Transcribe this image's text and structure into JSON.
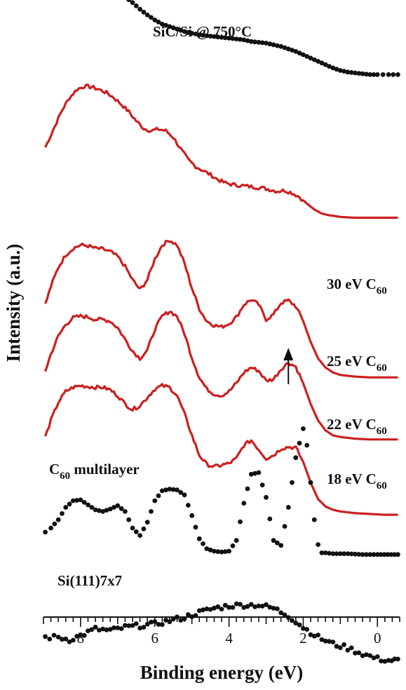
{
  "chart_data": {
    "type": "line",
    "xlabel": "Binding energy (eV)",
    "ylabel": "Intensity (a.u.)",
    "xlim": [
      9.0,
      -0.6
    ],
    "x_axis_reversed": true,
    "x_ticks": [
      8,
      6,
      4,
      2,
      0
    ],
    "x_minor_tick_step": 0.2,
    "grid": false,
    "legend": "none",
    "colors": {
      "red": "#cc1f1f",
      "black": "#111111"
    },
    "series": [
      {
        "label": "SiC/Si @ 750°C",
        "style": "dots",
        "color": "#111111",
        "offset": 6.0,
        "points": [
          [
            8.95,
            0.92
          ],
          [
            8.8,
            0.95
          ],
          [
            8.6,
            0.98
          ],
          [
            8.4,
            1.0
          ],
          [
            8.2,
            1.03
          ],
          [
            8.0,
            1.04
          ],
          [
            7.8,
            1.05
          ],
          [
            7.6,
            1.05
          ],
          [
            7.4,
            1.04
          ],
          [
            7.2,
            1.02
          ],
          [
            7.0,
            0.98
          ],
          [
            6.8,
            0.92
          ],
          [
            6.6,
            0.85
          ],
          [
            6.4,
            0.77
          ],
          [
            6.2,
            0.7
          ],
          [
            6.0,
            0.64
          ],
          [
            5.8,
            0.59
          ],
          [
            5.6,
            0.56
          ],
          [
            5.4,
            0.53
          ],
          [
            5.2,
            0.5
          ],
          [
            5.0,
            0.48
          ],
          [
            4.8,
            0.46
          ],
          [
            4.6,
            0.45
          ],
          [
            4.4,
            0.44
          ],
          [
            4.2,
            0.43
          ],
          [
            4.0,
            0.42
          ],
          [
            3.8,
            0.41
          ],
          [
            3.6,
            0.4
          ],
          [
            3.4,
            0.38
          ],
          [
            3.2,
            0.37
          ],
          [
            3.0,
            0.36
          ],
          [
            2.8,
            0.34
          ],
          [
            2.6,
            0.32
          ],
          [
            2.4,
            0.29
          ],
          [
            2.2,
            0.26
          ],
          [
            2.0,
            0.22
          ],
          [
            1.8,
            0.18
          ],
          [
            1.6,
            0.14
          ],
          [
            1.4,
            0.1
          ],
          [
            1.2,
            0.06
          ],
          [
            1.0,
            0.03
          ],
          [
            0.8,
            0.01
          ],
          [
            0.6,
            0.0
          ],
          [
            0.4,
            -0.01
          ],
          [
            0.2,
            -0.02
          ],
          [
            0.0,
            -0.02
          ],
          [
            -0.3,
            -0.02
          ],
          [
            -0.55,
            -0.02
          ]
        ]
      },
      {
        "label": "30 eV C₆₀",
        "label_main": "30 eV C",
        "label_sub": "60",
        "style": "line",
        "color": "#cc1f1f",
        "offset": 4.5,
        "points": [
          [
            8.95,
            0.6
          ],
          [
            8.7,
            0.85
          ],
          [
            8.5,
            1.05
          ],
          [
            8.3,
            1.2
          ],
          [
            8.1,
            1.3
          ],
          [
            7.9,
            1.34
          ],
          [
            7.7,
            1.33
          ],
          [
            7.5,
            1.3
          ],
          [
            7.3,
            1.26
          ],
          [
            7.1,
            1.2
          ],
          [
            6.9,
            1.12
          ],
          [
            6.7,
            1.03
          ],
          [
            6.5,
            0.92
          ],
          [
            6.3,
            0.83
          ],
          [
            6.1,
            0.8
          ],
          [
            5.9,
            0.82
          ],
          [
            5.7,
            0.8
          ],
          [
            5.5,
            0.72
          ],
          [
            5.3,
            0.58
          ],
          [
            5.1,
            0.45
          ],
          [
            4.9,
            0.37
          ],
          [
            4.7,
            0.32
          ],
          [
            4.5,
            0.27
          ],
          [
            4.3,
            0.21
          ],
          [
            4.1,
            0.17
          ],
          [
            3.9,
            0.15
          ],
          [
            3.7,
            0.14
          ],
          [
            3.5,
            0.13
          ],
          [
            3.3,
            0.12
          ],
          [
            3.1,
            0.11
          ],
          [
            2.9,
            0.09
          ],
          [
            2.7,
            0.07
          ],
          [
            2.5,
            0.08
          ],
          [
            2.3,
            0.05
          ],
          [
            2.1,
            0.0
          ],
          [
            1.9,
            -0.08
          ],
          [
            1.7,
            -0.15
          ],
          [
            1.5,
            -0.2
          ],
          [
            1.3,
            -0.22
          ],
          [
            1.0,
            -0.24
          ],
          [
            0.6,
            -0.25
          ],
          [
            0.2,
            -0.25
          ],
          [
            -0.2,
            -0.25
          ],
          [
            -0.55,
            -0.25
          ]
        ]
      },
      {
        "label": "25 eV C₆₀",
        "label_main": "25 eV C",
        "label_sub": "60",
        "style": "line",
        "color": "#cc1f1f",
        "offset": 3.2,
        "points": [
          [
            8.95,
            0.0
          ],
          [
            8.8,
            0.22
          ],
          [
            8.6,
            0.45
          ],
          [
            8.4,
            0.6
          ],
          [
            8.2,
            0.68
          ],
          [
            8.0,
            0.72
          ],
          [
            7.8,
            0.71
          ],
          [
            7.6,
            0.68
          ],
          [
            7.4,
            0.67
          ],
          [
            7.2,
            0.64
          ],
          [
            7.0,
            0.58
          ],
          [
            6.8,
            0.46
          ],
          [
            6.6,
            0.3
          ],
          [
            6.4,
            0.18
          ],
          [
            6.2,
            0.3
          ],
          [
            6.0,
            0.55
          ],
          [
            5.8,
            0.72
          ],
          [
            5.6,
            0.78
          ],
          [
            5.4,
            0.72
          ],
          [
            5.2,
            0.5
          ],
          [
            5.0,
            0.2
          ],
          [
            4.8,
            -0.05
          ],
          [
            4.6,
            -0.2
          ],
          [
            4.4,
            -0.25
          ],
          [
            4.2,
            -0.27
          ],
          [
            4.0,
            -0.23
          ],
          [
            3.8,
            -0.15
          ],
          [
            3.6,
            0.0
          ],
          [
            3.4,
            0.06
          ],
          [
            3.2,
            0.0
          ],
          [
            3.0,
            -0.18
          ],
          [
            2.8,
            -0.12
          ],
          [
            2.6,
            0.02
          ],
          [
            2.4,
            0.05
          ],
          [
            2.2,
            -0.02
          ],
          [
            2.0,
            -0.2
          ],
          [
            1.8,
            -0.45
          ],
          [
            1.6,
            -0.65
          ],
          [
            1.4,
            -0.76
          ],
          [
            1.2,
            -0.82
          ],
          [
            1.0,
            -0.85
          ],
          [
            0.6,
            -0.87
          ],
          [
            0.2,
            -0.88
          ],
          [
            -0.2,
            -0.88
          ],
          [
            -0.55,
            -0.88
          ]
        ]
      },
      {
        "label": "22 eV C₆₀",
        "label_main": "22 eV C",
        "label_sub": "60",
        "style": "line",
        "color": "#cc1f1f",
        "offset": 2.4,
        "points": [
          [
            8.95,
            0.0
          ],
          [
            8.8,
            0.2
          ],
          [
            8.6,
            0.42
          ],
          [
            8.4,
            0.56
          ],
          [
            8.2,
            0.64
          ],
          [
            8.0,
            0.66
          ],
          [
            7.8,
            0.65
          ],
          [
            7.6,
            0.62
          ],
          [
            7.4,
            0.62
          ],
          [
            7.2,
            0.6
          ],
          [
            7.0,
            0.52
          ],
          [
            6.8,
            0.38
          ],
          [
            6.6,
            0.24
          ],
          [
            6.4,
            0.15
          ],
          [
            6.2,
            0.25
          ],
          [
            6.0,
            0.5
          ],
          [
            5.8,
            0.66
          ],
          [
            5.6,
            0.72
          ],
          [
            5.4,
            0.66
          ],
          [
            5.2,
            0.45
          ],
          [
            5.0,
            0.16
          ],
          [
            4.8,
            -0.08
          ],
          [
            4.6,
            -0.22
          ],
          [
            4.4,
            -0.28
          ],
          [
            4.2,
            -0.3
          ],
          [
            4.0,
            -0.25
          ],
          [
            3.8,
            -0.15
          ],
          [
            3.6,
            -0.02
          ],
          [
            3.4,
            0.04
          ],
          [
            3.2,
            0.0
          ],
          [
            3.0,
            -0.12
          ],
          [
            2.8,
            -0.1
          ],
          [
            2.6,
            0.02
          ],
          [
            2.4,
            0.1
          ],
          [
            2.2,
            0.05
          ],
          [
            2.0,
            -0.15
          ],
          [
            1.8,
            -0.4
          ],
          [
            1.6,
            -0.6
          ],
          [
            1.4,
            -0.72
          ],
          [
            1.2,
            -0.78
          ],
          [
            1.0,
            -0.8
          ],
          [
            0.6,
            -0.82
          ],
          [
            0.2,
            -0.83
          ],
          [
            -0.2,
            -0.83
          ],
          [
            -0.55,
            -0.83
          ]
        ]
      },
      {
        "label": "18 eV C₆₀",
        "label_main": "18 eV C",
        "label_sub": "60",
        "style": "line",
        "color": "#cc1f1f",
        "offset": 1.6,
        "points": [
          [
            8.95,
            0.0
          ],
          [
            8.8,
            0.2
          ],
          [
            8.6,
            0.42
          ],
          [
            8.4,
            0.55
          ],
          [
            8.2,
            0.6
          ],
          [
            8.0,
            0.62
          ],
          [
            7.8,
            0.61
          ],
          [
            7.6,
            0.6
          ],
          [
            7.4,
            0.6
          ],
          [
            7.2,
            0.57
          ],
          [
            7.0,
            0.5
          ],
          [
            6.8,
            0.4
          ],
          [
            6.6,
            0.33
          ],
          [
            6.4,
            0.38
          ],
          [
            6.2,
            0.48
          ],
          [
            6.0,
            0.58
          ],
          [
            5.8,
            0.62
          ],
          [
            5.6,
            0.6
          ],
          [
            5.4,
            0.5
          ],
          [
            5.2,
            0.28
          ],
          [
            5.0,
            0.02
          ],
          [
            4.8,
            -0.22
          ],
          [
            4.6,
            -0.33
          ],
          [
            4.4,
            -0.36
          ],
          [
            4.2,
            -0.34
          ],
          [
            4.0,
            -0.32
          ],
          [
            3.8,
            -0.26
          ],
          [
            3.6,
            -0.1
          ],
          [
            3.4,
            -0.04
          ],
          [
            3.2,
            -0.15
          ],
          [
            3.0,
            -0.26
          ],
          [
            2.8,
            -0.22
          ],
          [
            2.6,
            -0.14
          ],
          [
            2.4,
            -0.12
          ],
          [
            2.2,
            -0.13
          ],
          [
            2.0,
            -0.3
          ],
          [
            1.8,
            -0.55
          ],
          [
            1.6,
            -0.75
          ],
          [
            1.4,
            -0.84
          ],
          [
            1.2,
            -0.88
          ],
          [
            1.0,
            -0.9
          ],
          [
            0.6,
            -0.92
          ],
          [
            0.2,
            -0.93
          ],
          [
            -0.2,
            -0.94
          ],
          [
            -0.55,
            -0.94
          ]
        ]
      },
      {
        "label": "C₆₀ multilayer",
        "label_main": "C",
        "label_sub": "60",
        "label_tail": " multilayer",
        "style": "dots",
        "color": "#111111",
        "offset": 0.45,
        "points": [
          [
            8.95,
            0.0
          ],
          [
            8.8,
            0.05
          ],
          [
            8.6,
            0.15
          ],
          [
            8.4,
            0.3
          ],
          [
            8.2,
            0.38
          ],
          [
            8.0,
            0.39
          ],
          [
            7.8,
            0.33
          ],
          [
            7.6,
            0.27
          ],
          [
            7.4,
            0.25
          ],
          [
            7.2,
            0.28
          ],
          [
            7.0,
            0.32
          ],
          [
            6.8,
            0.25
          ],
          [
            6.6,
            0.05
          ],
          [
            6.4,
            -0.04
          ],
          [
            6.2,
            0.12
          ],
          [
            6.0,
            0.38
          ],
          [
            5.8,
            0.5
          ],
          [
            5.6,
            0.52
          ],
          [
            5.4,
            0.51
          ],
          [
            5.2,
            0.45
          ],
          [
            5.0,
            0.2
          ],
          [
            4.8,
            -0.08
          ],
          [
            4.6,
            -0.2
          ],
          [
            4.4,
            -0.23
          ],
          [
            4.2,
            -0.24
          ],
          [
            4.0,
            -0.23
          ],
          [
            3.8,
            -0.1
          ],
          [
            3.6,
            0.35
          ],
          [
            3.4,
            0.7
          ],
          [
            3.2,
            0.72
          ],
          [
            3.0,
            0.42
          ],
          [
            2.8,
            -0.1
          ],
          [
            2.6,
            -0.16
          ],
          [
            2.4,
            0.3
          ],
          [
            2.2,
            0.9
          ],
          [
            2.0,
            1.25
          ],
          [
            1.9,
            1.05
          ],
          [
            1.8,
            0.6
          ],
          [
            1.7,
            0.15
          ],
          [
            1.6,
            -0.15
          ],
          [
            1.5,
            -0.25
          ],
          [
            1.4,
            -0.25
          ],
          [
            1.2,
            -0.26
          ],
          [
            0.8,
            -0.26
          ],
          [
            0.4,
            -0.27
          ],
          [
            0.0,
            -0.27
          ],
          [
            -0.55,
            -0.27
          ]
        ]
      },
      {
        "label": "Si(111)7x7",
        "style": "dots",
        "color": "#111111",
        "offset": 0.0,
        "points": [
          [
            8.95,
            -0.82
          ],
          [
            8.6,
            -0.82
          ],
          [
            8.3,
            -0.85
          ],
          [
            8.0,
            -0.8
          ],
          [
            7.6,
            -0.72
          ],
          [
            7.2,
            -0.74
          ],
          [
            6.8,
            -0.7
          ],
          [
            6.4,
            -0.68
          ],
          [
            6.0,
            -0.66
          ],
          [
            5.6,
            -0.62
          ],
          [
            5.2,
            -0.58
          ],
          [
            4.8,
            -0.52
          ],
          [
            4.4,
            -0.47
          ],
          [
            4.0,
            -0.44
          ],
          [
            3.6,
            -0.43
          ],
          [
            3.2,
            -0.43
          ],
          [
            2.8,
            -0.47
          ],
          [
            2.4,
            -0.56
          ],
          [
            2.0,
            -0.7
          ],
          [
            1.6,
            -0.82
          ],
          [
            1.2,
            -0.9
          ],
          [
            0.8,
            -0.95
          ],
          [
            0.4,
            -1.02
          ],
          [
            0.0,
            -1.08
          ],
          [
            -0.3,
            -1.1
          ],
          [
            -0.55,
            -1.1
          ]
        ]
      }
    ],
    "annotation": {
      "type": "arrow",
      "x": 2.4,
      "series": "25 eV C₆₀",
      "direction": "up"
    }
  }
}
